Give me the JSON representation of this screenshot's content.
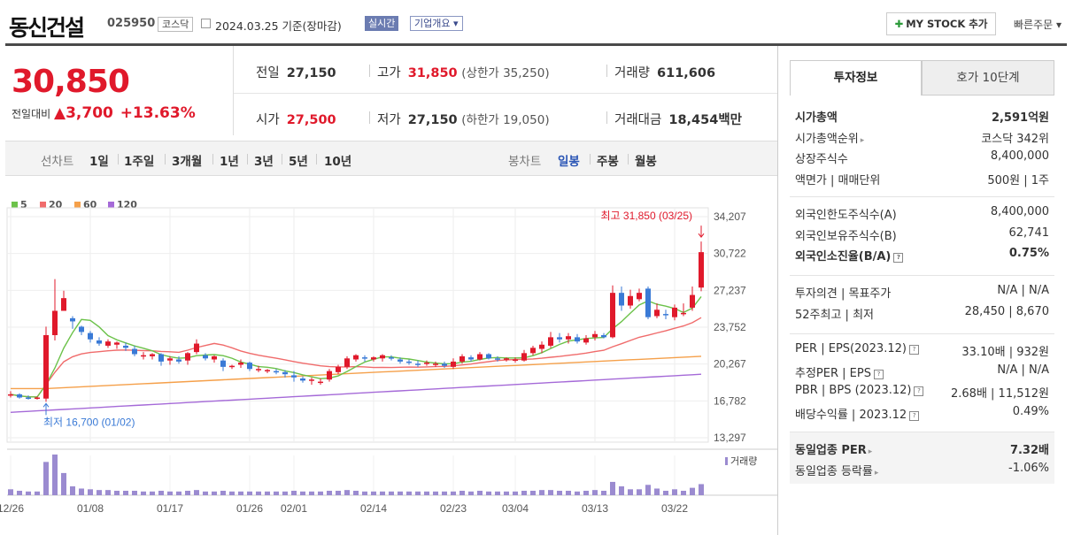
{
  "header": {
    "title": "동신건설",
    "code": "025950",
    "market": "코스닥",
    "date": "2024.03.25  기준(장마감)",
    "live_label": "실시간",
    "overview_label": "기업개요 ▾",
    "mystock_label": "MY STOCK 추가",
    "fastorder_label": "빠른주문 ▾"
  },
  "price": {
    "current": "30,850",
    "change_label": "전일대비",
    "change_value": "▲3,700",
    "change_pct": "+13.63%"
  },
  "stats": {
    "prev_label": "전일",
    "prev": "27,150",
    "high_label": "고가",
    "high": "31,850",
    "high_sub": "(상한가 35,250)",
    "volume_label": "거래량",
    "volume": "611,606",
    "open_label": "시가",
    "open": "27,500",
    "low_label": "저가",
    "low": "27,150",
    "low_sub": "(하한가 19,050)",
    "amount_label": "거래대금",
    "amount": "18,454",
    "amount_unit": "백만"
  },
  "toolbar": {
    "line_label": "선차트",
    "periods": [
      "1일",
      "1주일",
      "3개월",
      "1년",
      "3년",
      "5년",
      "10년"
    ],
    "candle_label": "봉차트",
    "candles": [
      "일봉",
      "주봉",
      "월봉"
    ],
    "active_candle": "일봉"
  },
  "colors": {
    "up": "#e0192b",
    "down": "#3a7ad6",
    "ma5": "#6cc24a",
    "ma20": "#f06b6b",
    "ma60": "#f5a04a",
    "ma120": "#a56ad8",
    "volume": "#9b8bd0"
  },
  "chart_data": {
    "type": "candlestick",
    "legend": [
      "5",
      "20",
      "60",
      "120"
    ],
    "y_ticks": [
      "34,207",
      "30,722",
      "27,237",
      "23,752",
      "20,267",
      "16,782",
      "13,297"
    ],
    "ylim": [
      13297,
      34207
    ],
    "x_ticks": [
      "12/26",
      "01/08",
      "01/17",
      "01/26",
      "02/01",
      "02/14",
      "02/23",
      "03/04",
      "03/13",
      "03/22"
    ],
    "x_tick_index": [
      0,
      9,
      18,
      27,
      32,
      41,
      50,
      57,
      66,
      75
    ],
    "high_annotation": "최고 31,850 (03/25)",
    "low_annotation": "최저 16,700 (01/02)",
    "volume_label": "거래량",
    "candles": [
      [
        17300,
        17700,
        17100,
        17400
      ],
      [
        17400,
        17500,
        17000,
        17100
      ],
      [
        17100,
        17300,
        16900,
        17000
      ],
      [
        17000,
        17200,
        16900,
        17100
      ],
      [
        17000,
        23800,
        16700,
        23000
      ],
      [
        23000,
        28300,
        22500,
        25300
      ],
      [
        25300,
        27200,
        25400,
        26500
      ],
      [
        24600,
        24800,
        23600,
        24300
      ],
      [
        23800,
        23900,
        23000,
        23300
      ],
      [
        23200,
        23400,
        22300,
        22600
      ],
      [
        22500,
        22800,
        22000,
        22200
      ],
      [
        22000,
        22600,
        21800,
        22400
      ],
      [
        22100,
        22400,
        21700,
        22300
      ],
      [
        22000,
        22300,
        21500,
        21800
      ],
      [
        21700,
        22000,
        21000,
        21200
      ],
      [
        21000,
        21400,
        20700,
        21100
      ],
      [
        21000,
        21300,
        20700,
        21200
      ],
      [
        21200,
        21300,
        20100,
        20500
      ],
      [
        20600,
        21000,
        20200,
        20800
      ],
      [
        20700,
        21000,
        20300,
        20500
      ],
      [
        20600,
        21400,
        20200,
        21300
      ],
      [
        21400,
        22600,
        21200,
        22200
      ],
      [
        21100,
        21300,
        20600,
        20800
      ],
      [
        20700,
        21100,
        20400,
        21000
      ],
      [
        20600,
        20800,
        19600,
        20000
      ],
      [
        20100,
        20200,
        19800,
        20100
      ],
      [
        20200,
        20700,
        19900,
        20400
      ],
      [
        20400,
        20500,
        19600,
        19800
      ],
      [
        19700,
        20100,
        19500,
        19800
      ],
      [
        19600,
        19800,
        19400,
        19700
      ],
      [
        19600,
        19800,
        19300,
        19500
      ],
      [
        19500,
        19700,
        19000,
        19300
      ],
      [
        19200,
        19600,
        18600,
        19000
      ],
      [
        18900,
        19100,
        18500,
        18700
      ],
      [
        18700,
        19000,
        18300,
        18800
      ],
      [
        18600,
        18900,
        18300,
        18600
      ],
      [
        18800,
        19800,
        18600,
        19600
      ],
      [
        19500,
        20200,
        19300,
        20000
      ],
      [
        20000,
        21000,
        19800,
        20800
      ],
      [
        20700,
        21200,
        20500,
        21100
      ],
      [
        20900,
        21100,
        20500,
        20800
      ],
      [
        20700,
        21000,
        20500,
        20900
      ],
      [
        20800,
        21200,
        20500,
        21100
      ],
      [
        20900,
        21100,
        20600,
        20800
      ],
      [
        20700,
        20900,
        20300,
        20500
      ],
      [
        20500,
        20700,
        20200,
        20400
      ],
      [
        20300,
        20600,
        20000,
        20200
      ],
      [
        20300,
        20600,
        20100,
        20400
      ],
      [
        20200,
        20500,
        20000,
        20300
      ],
      [
        20300,
        20500,
        19900,
        20100
      ],
      [
        20000,
        20800,
        19800,
        20500
      ],
      [
        20500,
        21200,
        20300,
        21000
      ],
      [
        20900,
        21100,
        20500,
        20700
      ],
      [
        20700,
        21400,
        20600,
        21200
      ],
      [
        21200,
        21300,
        20700,
        20800
      ],
      [
        20800,
        21000,
        20500,
        20700
      ],
      [
        20700,
        20900,
        20500,
        20800
      ],
      [
        20600,
        20900,
        20400,
        20700
      ],
      [
        20600,
        21600,
        20500,
        21300
      ],
      [
        21300,
        22000,
        21100,
        21800
      ],
      [
        21700,
        22400,
        21300,
        22100
      ],
      [
        22000,
        23300,
        21800,
        22800
      ],
      [
        22800,
        23200,
        22300,
        22600
      ],
      [
        22600,
        23200,
        22200,
        22900
      ],
      [
        22800,
        23100,
        22200,
        22400
      ],
      [
        22300,
        23000,
        22100,
        22700
      ],
      [
        22800,
        23400,
        22500,
        23100
      ],
      [
        23000,
        23200,
        22700,
        22800
      ],
      [
        22800,
        27700,
        22700,
        27000
      ],
      [
        27000,
        27600,
        25300,
        25800
      ],
      [
        25800,
        27300,
        25500,
        26700
      ],
      [
        26400,
        27400,
        26200,
        27000
      ],
      [
        27400,
        27600,
        24500,
        24700
      ],
      [
        24800,
        26000,
        24600,
        25400
      ],
      [
        25000,
        25400,
        24500,
        24900
      ],
      [
        24700,
        25900,
        24400,
        25600
      ],
      [
        25000,
        26000,
        24800,
        25100
      ],
      [
        25600,
        27600,
        25300,
        26800
      ],
      [
        27500,
        31850,
        27150,
        30850
      ]
    ],
    "volume": [
      8,
      6,
      5,
      5,
      45,
      55,
      30,
      12,
      9,
      8,
      7,
      7,
      6,
      6,
      6,
      5,
      5,
      6,
      5,
      5,
      6,
      7,
      5,
      5,
      6,
      5,
      5,
      5,
      5,
      5,
      5,
      5,
      6,
      5,
      5,
      5,
      6,
      6,
      7,
      6,
      5,
      5,
      5,
      5,
      5,
      5,
      5,
      5,
      5,
      5,
      5,
      6,
      5,
      6,
      5,
      5,
      5,
      5,
      6,
      6,
      7,
      7,
      6,
      6,
      5,
      6,
      7,
      6,
      18,
      12,
      8,
      8,
      14,
      9,
      6,
      8,
      6,
      10,
      15
    ]
  },
  "invest": {
    "tab_active": "투자정보",
    "tab_other": "호가 10단계",
    "rows_a": [
      {
        "k": "시가총액",
        "v": "2,591억원",
        "bold": true
      },
      {
        "k": "시가총액순위",
        "v": "코스닥 342위",
        "arrow": true
      },
      {
        "k": "상장주식수",
        "v": "8,400,000"
      },
      {
        "k": "액면가 | 매매단위",
        "v": "500원 | 1주"
      }
    ],
    "rows_b": [
      {
        "k": "외국인한도주식수(A)",
        "v": "8,400,000"
      },
      {
        "k": "외국인보유주식수(B)",
        "v": "62,741"
      },
      {
        "k": "외국인소진율(B/A)",
        "v": "0.75%",
        "bold": true,
        "help": true
      }
    ],
    "rows_c": [
      {
        "k": "투자의견 | 목표주가",
        "v": "N/A | N/A"
      },
      {
        "k": "52주최고 | 최저",
        "v": "28,450 | 8,670"
      }
    ],
    "rows_d": [
      {
        "k": "PER | EPS(2023.12)",
        "v": "33.10배 | 932원",
        "help": true
      },
      {
        "k": "추정PER | EPS",
        "v": "N/A | N/A",
        "help": true
      },
      {
        "k": "PBR | BPS (2023.12)",
        "v": "2.68배 | 11,512원",
        "help": true
      },
      {
        "k": "배당수익률 | 2023.12",
        "v": "0.49%",
        "help": true
      }
    ],
    "rows_e": [
      {
        "k": "동일업종 PER",
        "v": "7.32배",
        "bold": true,
        "arrow": true
      },
      {
        "k": "동일업종 등락률",
        "v": "-1.06%",
        "arrow": true,
        "blue": true
      }
    ]
  }
}
